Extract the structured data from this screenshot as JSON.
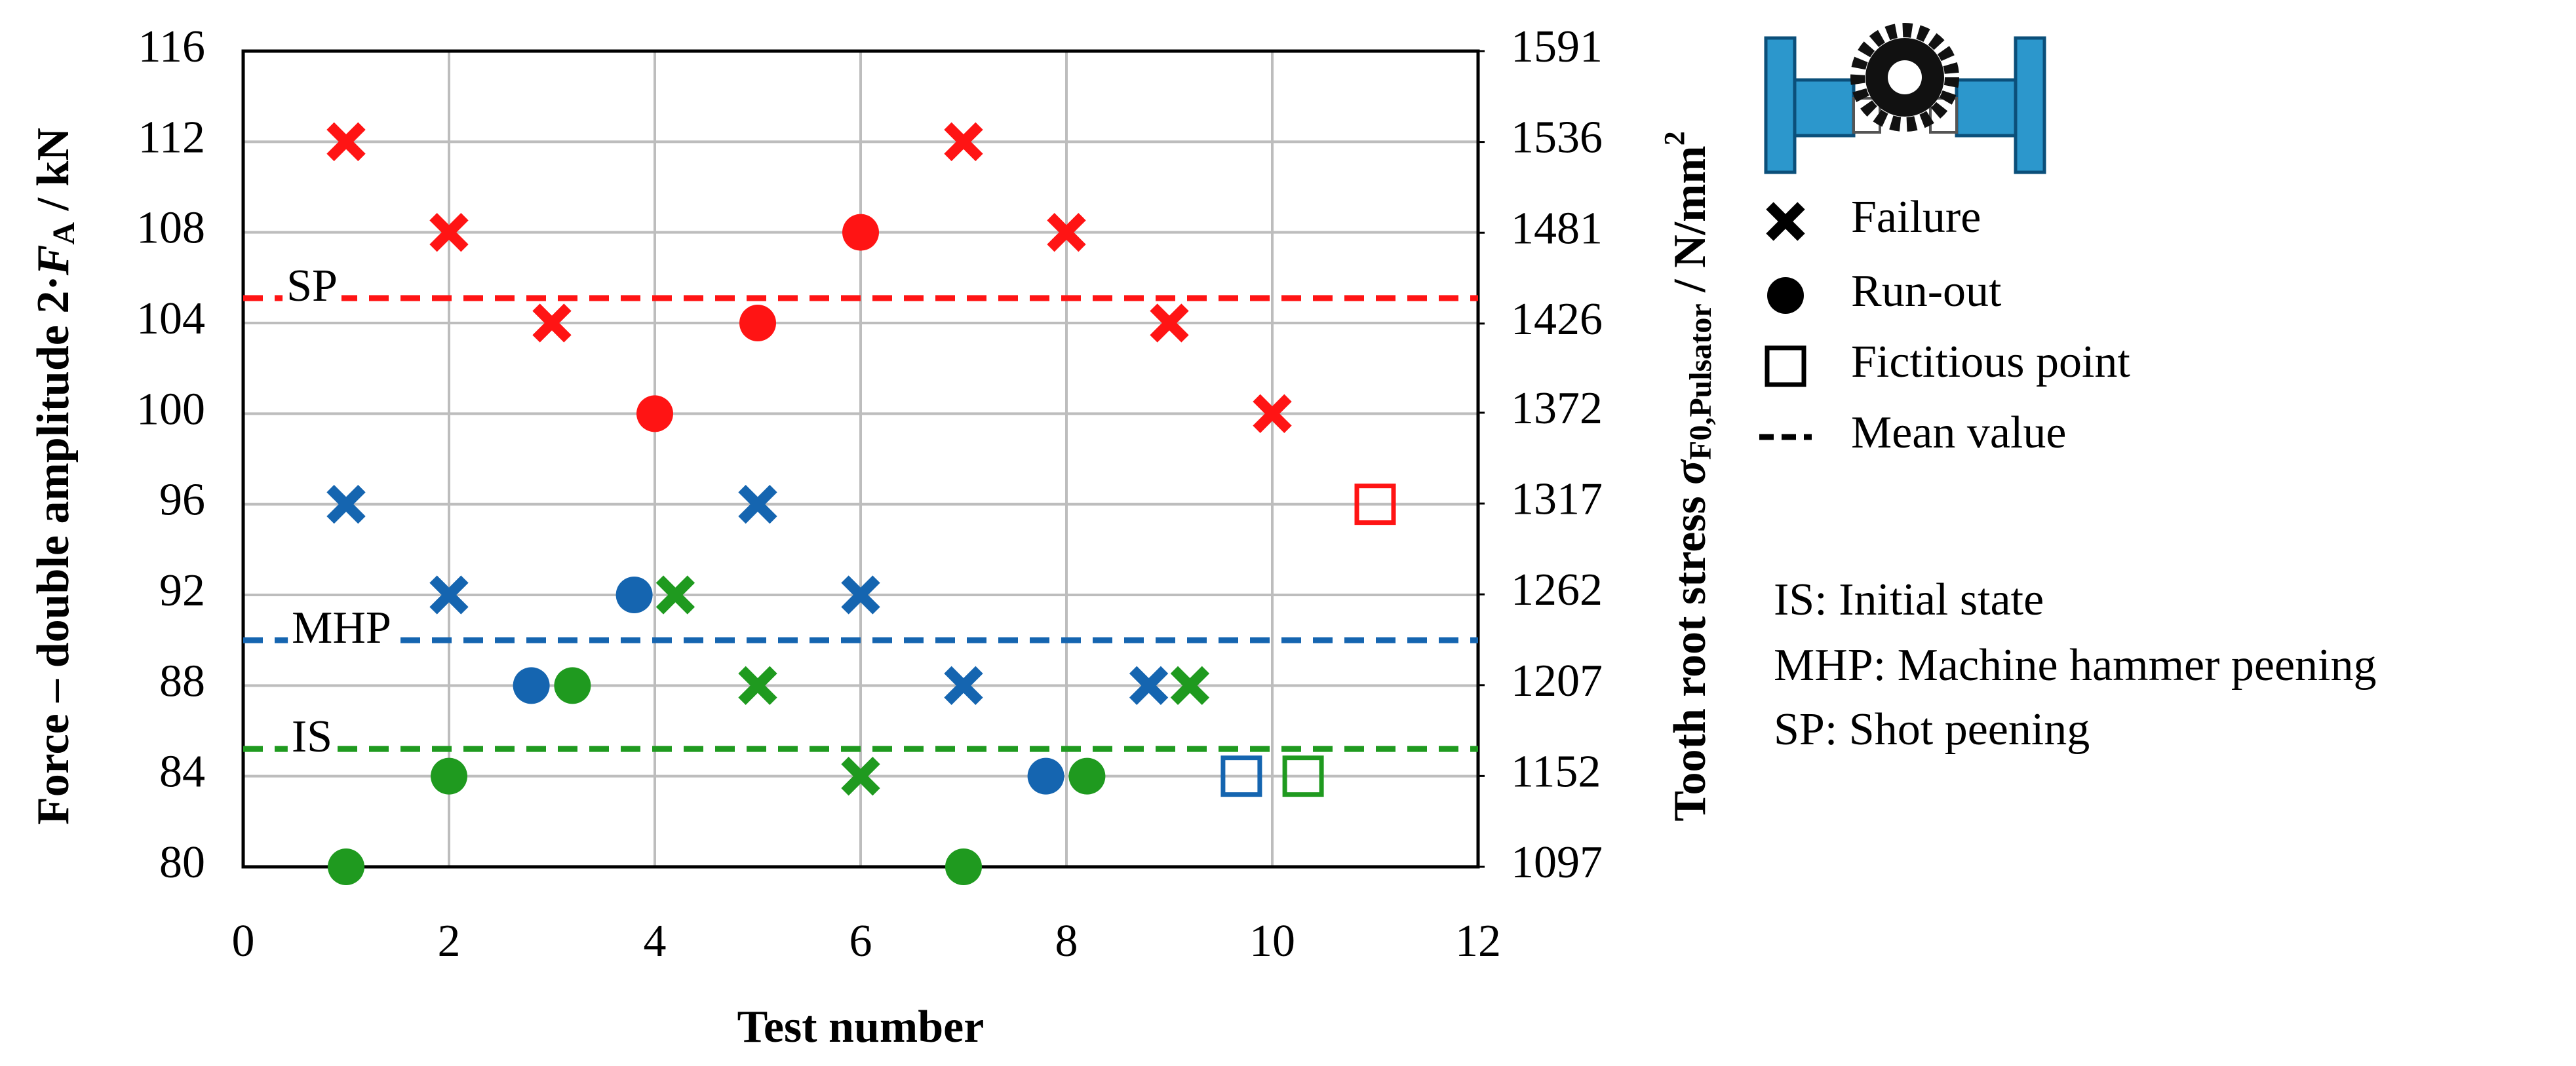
{
  "chart_data": {
    "type": "scatter",
    "x_label": "Test number",
    "y_label": {
      "text": "Force – double amplitude 2·",
      "var": "F",
      "sub": "A",
      "unit": " / kN"
    },
    "y2_label": {
      "text": "Tooth root stress ",
      "var": "σ",
      "sub": "F0,Pulsator",
      "unit": " / N/mm",
      "sup": "2"
    },
    "xlim": [
      0,
      12
    ],
    "xticks": [
      0,
      2,
      4,
      6,
      8,
      10,
      12
    ],
    "ylim": [
      80,
      116
    ],
    "yticks": [
      80,
      84,
      88,
      92,
      96,
      100,
      104,
      108,
      112,
      116
    ],
    "y2lim": [
      1097,
      1591
    ],
    "y2ticks": [
      1097,
      1152,
      1207,
      1262,
      1317,
      1372,
      1426,
      1481,
      1536,
      1591
    ],
    "grid": true,
    "groups": [
      {
        "name": "SP",
        "color": "#ff1414",
        "mean": 105.1,
        "failure": {
          "x": [
            1,
            2,
            3,
            7,
            8,
            9,
            10
          ],
          "values": [
            112,
            108,
            104,
            112,
            108,
            104,
            100
          ]
        },
        "run_out": {
          "x": [
            4,
            5,
            6
          ],
          "values": [
            100,
            104,
            108
          ]
        },
        "fictitious": {
          "x": [
            11
          ],
          "values": [
            96
          ]
        }
      },
      {
        "name": "MHP",
        "color": "#1565b0",
        "mean": 90,
        "failure": {
          "x": [
            1,
            2,
            5,
            6,
            7,
            8.8
          ],
          "values": [
            96,
            92,
            96,
            92,
            88,
            88
          ]
        },
        "run_out": {
          "x": [
            2.8,
            3.8,
            7.8
          ],
          "values": [
            88,
            92,
            84
          ]
        },
        "fictitious": {
          "x": [
            9.7
          ],
          "values": [
            84
          ]
        }
      },
      {
        "name": "IS",
        "color": "#1f9a1f",
        "mean": 85.2,
        "failure": {
          "x": [
            4.2,
            5,
            6,
            9.2
          ],
          "values": [
            92,
            88,
            84,
            88
          ]
        },
        "run_out": {
          "x": [
            1,
            2,
            3.2,
            7,
            8.2
          ],
          "values": [
            80,
            84,
            88,
            80,
            84
          ]
        },
        "fictitious": {
          "x": [
            10.3
          ],
          "values": [
            84
          ]
        }
      }
    ],
    "legend": [
      {
        "label": "Failure",
        "marker": "failure"
      },
      {
        "label": "Run-out",
        "marker": "run_out"
      },
      {
        "label": "Fictitious point",
        "marker": "fictitious"
      },
      {
        "label": "Mean value",
        "marker": "mean"
      }
    ],
    "notes": [
      "IS: Initial state",
      "MHP: Machine hammer peening",
      "SP: Shot peening"
    ]
  }
}
